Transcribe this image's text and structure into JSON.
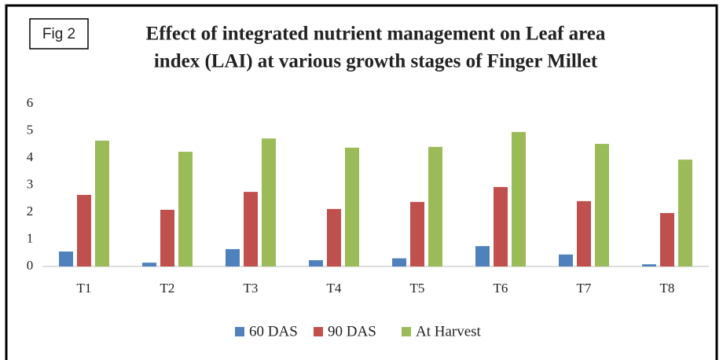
{
  "fig_label": "Fig 2",
  "chart_data": {
    "type": "bar",
    "title": "Effect of integrated nutrient management on Leaf area index (LAI) at various growth stages of Finger Millet",
    "title_lines": [
      "Effect of integrated nutrient management on Leaf area",
      "index (LAI) at various growth stages of Finger Millet"
    ],
    "categories": [
      "T1",
      "T2",
      "T3",
      "T4",
      "T5",
      "T6",
      "T7",
      "T8"
    ],
    "series": [
      {
        "name": "60 DAS",
        "color": "#4f81bd",
        "values": [
          0.55,
          0.14,
          0.64,
          0.23,
          0.3,
          0.75,
          0.44,
          0.08
        ]
      },
      {
        "name": "90 DAS",
        "color": "#c0504d",
        "values": [
          2.64,
          2.09,
          2.75,
          2.12,
          2.38,
          2.93,
          2.41,
          1.97
        ]
      },
      {
        "name": "At Harvest",
        "color": "#9bbb59",
        "values": [
          4.64,
          4.23,
          4.72,
          4.38,
          4.41,
          4.96,
          4.52,
          3.94
        ]
      }
    ],
    "ylim": [
      0,
      6
    ],
    "yticks": [
      0,
      1,
      2,
      3,
      4,
      5,
      6
    ],
    "grid": false,
    "legend": "bottom"
  }
}
